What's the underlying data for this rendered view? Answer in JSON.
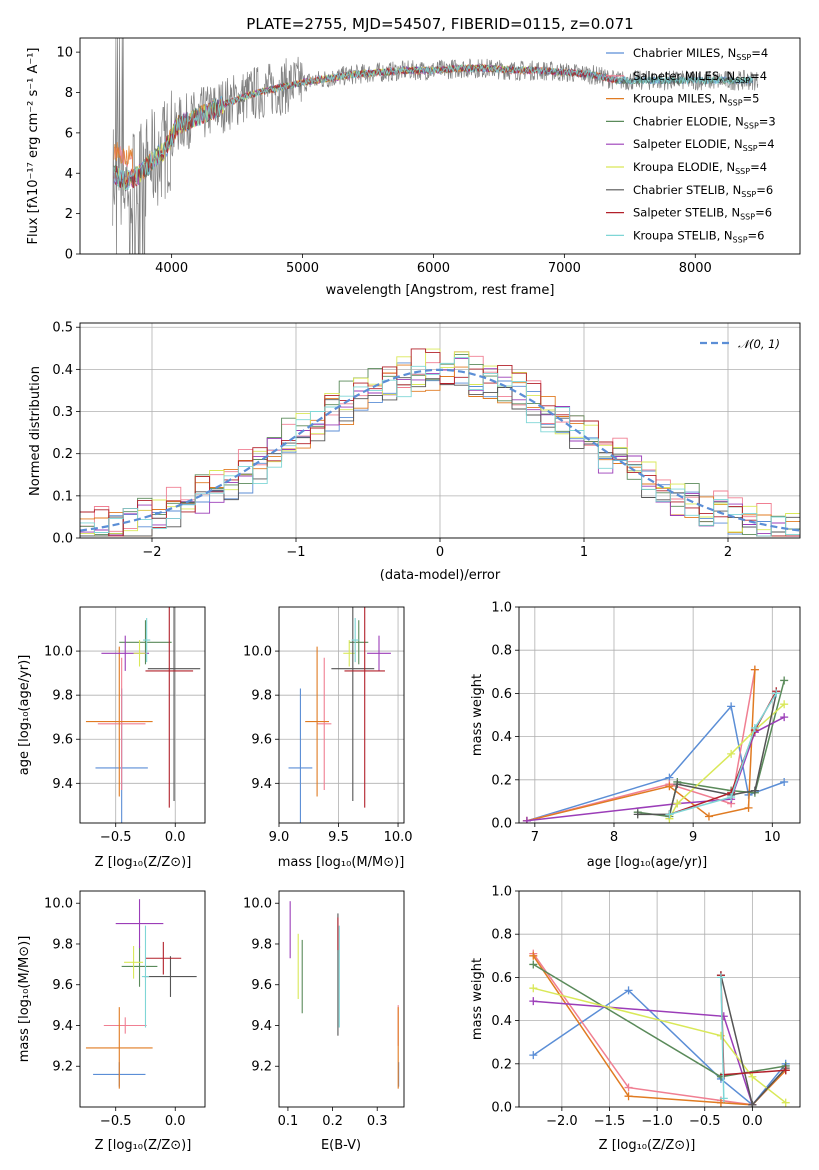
{
  "colors": [
    "#5b8ed6",
    "#f07f92",
    "#e07b22",
    "#5a8a5a",
    "#9b3db8",
    "#d9e858",
    "#555555",
    "#b2202a",
    "#7fd6d6"
  ],
  "chart_data": [
    {
      "id": "spectrum",
      "type": "line",
      "title": "PLATE=2755, MJD=54507, FIBERID=0115, z=0.071",
      "xlabel": "wavelength [Angstrom, rest frame]",
      "ylabel": "Flux [fλ10⁻¹⁷ erg cm⁻² s⁻¹ A⁻¹]",
      "xlim": [
        3300,
        8800
      ],
      "ylim": [
        0,
        10.7
      ],
      "xticks": [
        "4000",
        "5000",
        "6000",
        "7000",
        "8000"
      ],
      "yticks": [
        "0",
        "2",
        "4",
        "6",
        "8",
        "10"
      ],
      "data_x": [
        3550,
        3650,
        3750,
        3850,
        3950,
        4050,
        4200,
        4400,
        4600,
        4800,
        5000,
        5200,
        5400,
        5600,
        5800,
        6000,
        6200,
        6400,
        6600,
        6800,
        7000,
        7200,
        7400
      ],
      "data_y": [
        4.0,
        3.6,
        3.9,
        4.6,
        5.2,
        6.4,
        6.8,
        7.4,
        7.9,
        8.2,
        8.5,
        8.7,
        8.9,
        9.0,
        9.1,
        9.1,
        9.2,
        9.2,
        9.1,
        9.1,
        9.0,
        8.9,
        8.6
      ],
      "legend": [
        "Chabrier MILES, N_SSP=4",
        "Salpeter MILES, N_SSP=4",
        "Kroupa MILES, N_SSP=5",
        "Chabrier ELODIE, N_SSP=3",
        "Salpeter ELODIE, N_SSP=4",
        "Kroupa ELODIE, N_SSP=4",
        "Chabrier STELIB, N_SSP=6",
        "Salpeter STELIB, N_SSP=6",
        "Kroupa STELIB, N_SSP=6"
      ]
    },
    {
      "id": "residuals",
      "type": "line",
      "xlabel": "(data-model)/error",
      "ylabel": "Normed distribution",
      "xlim": [
        -2.5,
        2.5
      ],
      "ylim": [
        0,
        0.51
      ],
      "xticks": [
        "−2",
        "−1",
        "0",
        "1",
        "2"
      ],
      "yticks": [
        "0.0",
        "0.1",
        "0.2",
        "0.3",
        "0.4",
        "0.5"
      ],
      "legend": [
        "𝒩(0, 1)"
      ]
    },
    {
      "id": "age-vs-Z",
      "type": "scatter",
      "xlabel": "Z [log₁₀(Z/Z⊙)]",
      "ylabel": "age  [log₁₀(age/yr)]",
      "xlim": [
        -0.8,
        0.25
      ],
      "ylim": [
        9.22,
        10.2
      ],
      "xticks": [
        "−0.5",
        "0.0"
      ],
      "yticks": [
        "9.4",
        "9.6",
        "9.8",
        "10.0"
      ],
      "points": [
        {
          "x": -0.45,
          "y": 9.47,
          "xe": 0.22,
          "ye": 0.36
        },
        {
          "x": -0.45,
          "y": 9.67,
          "xe": 0.2,
          "ye": 0.3
        },
        {
          "x": -0.47,
          "y": 9.68,
          "xe": 0.28,
          "ye": 0.34
        },
        {
          "x": -0.25,
          "y": 10.04,
          "xe": 0.22,
          "ye": 0.1
        },
        {
          "x": -0.42,
          "y": 9.99,
          "xe": 0.2,
          "ye": 0.08
        },
        {
          "x": -0.3,
          "y": 9.99,
          "xe": 0.05,
          "ye": 0.06
        },
        {
          "x": -0.01,
          "y": 9.92,
          "xe": 0.22,
          "ye": 0.6
        },
        {
          "x": -0.05,
          "y": 9.91,
          "xe": 0.2,
          "ye": 0.62
        },
        {
          "x": -0.24,
          "y": 10.05,
          "xe": 0.03,
          "ye": 0.1
        }
      ]
    },
    {
      "id": "age-vs-mass",
      "type": "scatter",
      "xlabel": "mass [log₁₀(M/M⊙)]",
      "ylabel": "",
      "xlim": [
        9.0,
        10.05
      ],
      "ylim": [
        9.22,
        10.2
      ],
      "xticks": [
        "9.0",
        "9.5",
        "10.0"
      ],
      "yticks": [
        "9.4",
        "9.6",
        "9.8",
        "10.0"
      ],
      "points": [
        {
          "x": 9.18,
          "y": 9.47,
          "xe": 0.1,
          "ye": 0.36
        },
        {
          "x": 9.38,
          "y": 9.67,
          "xe": 0.06,
          "ye": 0.3
        },
        {
          "x": 9.32,
          "y": 9.68,
          "xe": 0.1,
          "ye": 0.34
        },
        {
          "x": 9.67,
          "y": 10.04,
          "xe": 0.08,
          "ye": 0.1
        },
        {
          "x": 9.84,
          "y": 9.99,
          "xe": 0.1,
          "ye": 0.08
        },
        {
          "x": 9.59,
          "y": 9.99,
          "xe": 0.05,
          "ye": 0.06
        },
        {
          "x": 9.62,
          "y": 9.92,
          "xe": 0.18,
          "ye": 0.6
        },
        {
          "x": 9.72,
          "y": 9.91,
          "xe": 0.17,
          "ye": 0.62
        },
        {
          "x": 9.64,
          "y": 10.05,
          "xe": 0.03,
          "ye": 0.1
        }
      ]
    },
    {
      "id": "weight-vs-age",
      "type": "line",
      "xlabel": "age  [log₁₀(age/yr)]",
      "ylabel": "mass weight",
      "xlim": [
        6.8,
        10.35
      ],
      "ylim": [
        0,
        1.0
      ],
      "xticks": [
        "7",
        "8",
        "9",
        "10"
      ],
      "yticks": [
        "0.0",
        "0.2",
        "0.4",
        "0.6",
        "0.8",
        "1.0"
      ],
      "series": [
        {
          "x": [
            6.9,
            8.7,
            9.48,
            9.7,
            10.15
          ],
          "y": [
            0.01,
            0.21,
            0.54,
            0.13,
            0.19
          ]
        },
        {
          "x": [
            6.9,
            8.7,
            9.48,
            9.78
          ],
          "y": [
            0.01,
            0.18,
            0.09,
            0.71
          ]
        },
        {
          "x": [
            6.9,
            8.7,
            9.2,
            9.7,
            9.78
          ],
          "y": [
            0.01,
            0.17,
            0.03,
            0.07,
            0.71
          ]
        },
        {
          "x": [
            8.3,
            8.7,
            8.8,
            9.48,
            9.78,
            10.15
          ],
          "y": [
            0.05,
            0.03,
            0.19,
            0.15,
            0.14,
            0.66
          ]
        },
        {
          "x": [
            6.9,
            8.8,
            9.48,
            9.78,
            10.15
          ],
          "y": [
            0.01,
            0.09,
            0.11,
            0.42,
            0.49
          ]
        },
        {
          "x": [
            8.7,
            8.8,
            9.48,
            9.78,
            10.15
          ],
          "y": [
            0.02,
            0.09,
            0.32,
            0.43,
            0.55
          ]
        },
        {
          "x": [
            8.3,
            8.7,
            8.8,
            9.48,
            9.78,
            10.05
          ],
          "y": [
            0.04,
            0.04,
            0.18,
            0.13,
            0.15,
            0.6
          ]
        },
        {
          "x": [
            8.7,
            9.48,
            9.78,
            10.05
          ],
          "y": [
            0.04,
            0.14,
            0.43,
            0.61
          ]
        },
        {
          "x": [
            8.7,
            9.48,
            9.78,
            10.05
          ],
          "y": [
            0.04,
            0.12,
            0.44,
            0.6
          ]
        }
      ]
    },
    {
      "id": "mass-vs-Z",
      "type": "scatter",
      "xlabel": "Z [log₁₀(Z/Z⊙)]",
      "ylabel": "mass [log₁₀(M/M⊙)]",
      "xlim": [
        -0.8,
        0.25
      ],
      "ylim": [
        9.0,
        10.06
      ],
      "xticks": [
        "−0.5",
        "0.0"
      ],
      "yticks": [
        "9.2",
        "9.4",
        "9.6",
        "9.8",
        "10.0"
      ],
      "points": [
        {
          "x": -0.47,
          "y": 9.16,
          "xe": 0.22,
          "ye": 0.06
        },
        {
          "x": -0.42,
          "y": 9.4,
          "xe": 0.18,
          "ye": 0.04
        },
        {
          "x": -0.47,
          "y": 9.29,
          "xe": 0.28,
          "ye": 0.2
        },
        {
          "x": -0.3,
          "y": 9.69,
          "xe": 0.15,
          "ye": 0.1
        },
        {
          "x": -0.3,
          "y": 9.9,
          "xe": 0.2,
          "ye": 0.12
        },
        {
          "x": -0.35,
          "y": 9.71,
          "xe": 0.08,
          "ye": 0.08
        },
        {
          "x": -0.04,
          "y": 9.64,
          "xe": 0.22,
          "ye": 0.1
        },
        {
          "x": -0.1,
          "y": 9.73,
          "xe": 0.15,
          "ye": 0.08
        },
        {
          "x": -0.25,
          "y": 9.64,
          "xe": 0.03,
          "ye": 0.25
        }
      ]
    },
    {
      "id": "mass-vs-ebv",
      "type": "scatter",
      "xlabel": "E(B-V)",
      "ylabel": "",
      "xlim": [
        0.08,
        0.36
      ],
      "ylim": [
        9.0,
        10.06
      ],
      "xticks": [
        "0.1",
        "0.2",
        "0.3"
      ],
      "yticks": [
        "9.2",
        "9.4",
        "9.6",
        "9.8",
        "10.0"
      ],
      "points": [
        {
          "x": 0.348,
          "y": 9.16,
          "xe": 0,
          "ye": 0.06
        },
        {
          "x": 0.347,
          "y": 9.4,
          "xe": 0,
          "ye": 0.1
        },
        {
          "x": 0.347,
          "y": 9.29,
          "xe": 0,
          "ye": 0.2
        },
        {
          "x": 0.132,
          "y": 9.64,
          "xe": 0,
          "ye": 0.18
        },
        {
          "x": 0.105,
          "y": 9.87,
          "xe": 0,
          "ye": 0.14
        },
        {
          "x": 0.123,
          "y": 9.69,
          "xe": 0,
          "ye": 0.16
        },
        {
          "x": 0.212,
          "y": 9.65,
          "xe": 0,
          "ye": 0.3
        },
        {
          "x": 0.212,
          "y": 9.85,
          "xe": 0,
          "ye": 0.08
        },
        {
          "x": 0.215,
          "y": 9.64,
          "xe": 0,
          "ye": 0.25
        }
      ]
    },
    {
      "id": "weight-vs-Z",
      "type": "line",
      "xlabel": "Z [log₁₀(Z/Z⊙)]",
      "ylabel": "mass weight",
      "xlim": [
        -2.45,
        0.5
      ],
      "ylim": [
        0,
        1.0
      ],
      "xticks": [
        "−2.0",
        "−1.5",
        "−1.0",
        "−0.5",
        "0.0"
      ],
      "yticks": [
        "0.0",
        "0.2",
        "0.4",
        "0.6",
        "0.8",
        "1.0"
      ],
      "series": [
        {
          "x": [
            -2.3,
            -1.3,
            -0.33,
            0.0,
            0.35
          ],
          "y": [
            0.24,
            0.54,
            0.13,
            0.01,
            0.2
          ]
        },
        {
          "x": [
            -2.3,
            -1.3,
            -0.33,
            0.0,
            0.35
          ],
          "y": [
            0.71,
            0.09,
            0.03,
            0.01,
            0.17
          ]
        },
        {
          "x": [
            -2.3,
            -1.3,
            -0.33,
            0.0,
            0.35
          ],
          "y": [
            0.7,
            0.05,
            0.02,
            0.01,
            0.17
          ]
        },
        {
          "x": [
            -2.3,
            -0.33,
            0.35
          ],
          "y": [
            0.66,
            0.14,
            0.19
          ]
        },
        {
          "x": [
            -2.3,
            -0.3,
            0.0
          ],
          "y": [
            0.49,
            0.42,
            0.01
          ]
        },
        {
          "x": [
            -2.3,
            -0.33,
            0.0,
            0.35
          ],
          "y": [
            0.55,
            0.33,
            0.14,
            0.02
          ]
        },
        {
          "x": [
            -0.33,
            0.0,
            0.35
          ],
          "y": [
            0.61,
            0.01,
            0.18
          ]
        },
        {
          "x": [
            -0.33,
            -0.3,
            0.35
          ],
          "y": [
            0.61,
            0.15,
            0.17
          ]
        },
        {
          "x": [
            -0.33,
            -0.3
          ],
          "y": [
            0.6,
            0.04
          ]
        }
      ]
    }
  ]
}
